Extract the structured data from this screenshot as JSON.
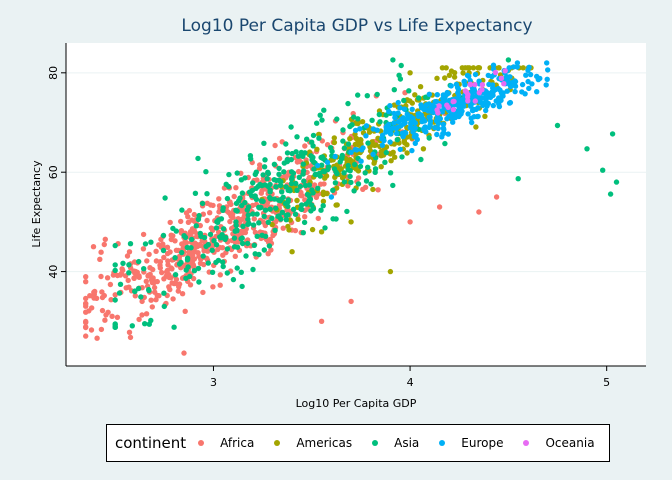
{
  "chart_data": {
    "type": "scatter",
    "title": "Log10 Per Capita GDP vs Life Expectancy",
    "xlabel": "Log10 Per Capita GDP",
    "ylabel": "Life Expectancy",
    "xlim": [
      2.25,
      5.2
    ],
    "ylim": [
      21,
      86
    ],
    "xticks": [
      3,
      4,
      5
    ],
    "yticks": [
      40,
      60,
      80
    ],
    "grid": "horizontal",
    "legend": {
      "title": "continent",
      "placement": "bottom"
    },
    "series": [
      {
        "name": "Africa",
        "color": "#f8766d",
        "cloud": {
          "x": [
            2.35,
            4.45
          ],
          "y": [
            23.6,
            76
          ],
          "slope": 22,
          "center": [
            3.05,
            48
          ],
          "spread": 6,
          "count": 620
        },
        "points": [
          [
            2.39,
            45.0
          ],
          [
            2.45,
            46.5
          ],
          [
            2.85,
            23.6
          ],
          [
            3.55,
            30
          ],
          [
            3.7,
            34
          ],
          [
            4.0,
            50
          ],
          [
            4.15,
            53
          ],
          [
            4.35,
            52
          ],
          [
            4.44,
            55
          ]
        ]
      },
      {
        "name": "Americas",
        "color": "#a3a500",
        "cloud": {
          "x": [
            3.1,
            4.7
          ],
          "y": [
            38,
            81
          ],
          "slope": 24,
          "center": [
            3.9,
            68
          ],
          "spread": 5,
          "count": 300
        },
        "points": [
          [
            3.4,
            44
          ],
          [
            3.55,
            48
          ],
          [
            3.7,
            50
          ],
          [
            3.9,
            40
          ],
          [
            4.0,
            80
          ],
          [
            4.2,
            79.5
          ],
          [
            4.3,
            80
          ],
          [
            4.5,
            80.5
          ]
        ]
      },
      {
        "name": "Asia",
        "color": "#00bf7d",
        "cloud": {
          "x": [
            2.5,
            4.75
          ],
          "y": [
            28.8,
            82.6
          ],
          "slope": 25,
          "center": [
            3.35,
            56
          ],
          "spread": 8,
          "count": 390
        },
        "points": [
          [
            2.6,
            36
          ],
          [
            2.62,
            42
          ],
          [
            2.75,
            33
          ],
          [
            2.8,
            28.8
          ],
          [
            4.5,
            82.6
          ],
          [
            4.75,
            69.4
          ],
          [
            4.9,
            64.7
          ],
          [
            4.98,
            60.4
          ],
          [
            5.02,
            55.6
          ],
          [
            5.05,
            58
          ],
          [
            5.03,
            67.7
          ],
          [
            4.55,
            58.7
          ]
        ]
      },
      {
        "name": "Europe",
        "color": "#00b0f6",
        "cloud": {
          "x": [
            3.5,
            4.7
          ],
          "y": [
            54,
            82
          ],
          "slope": 15,
          "center": [
            4.2,
            73
          ],
          "spread": 3,
          "count": 360
        },
        "points": [
          [
            3.58,
            62
          ],
          [
            3.6,
            55
          ],
          [
            3.7,
            64
          ],
          [
            4.6,
            80.5
          ]
        ]
      },
      {
        "name": "Oceania",
        "color": "#e76bf3",
        "cloud": {
          "x": [
            4.03,
            4.55
          ],
          "y": [
            69,
            81
          ],
          "slope": 20,
          "center": [
            4.3,
            75.5
          ],
          "spread": 1.5,
          "count": 24
        },
        "points": []
      }
    ]
  }
}
